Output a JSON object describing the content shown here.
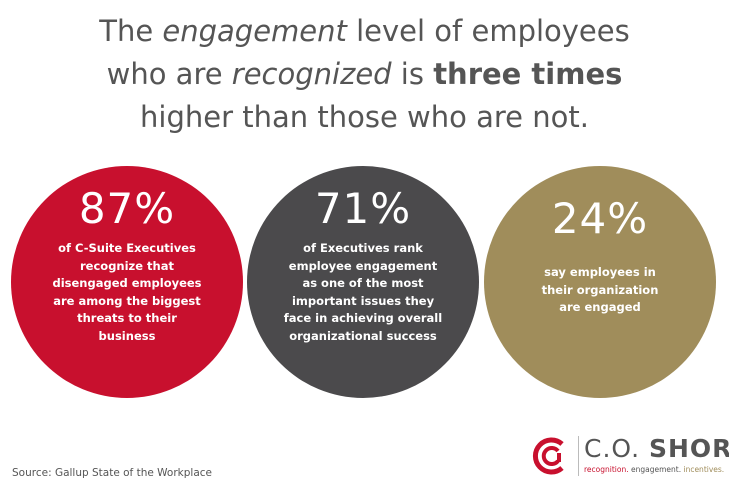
{
  "headline": {
    "line1_pre": "The ",
    "line1_em": "engagement",
    "line1_post": " level of employees",
    "line2_pre": "who are ",
    "line2_em": "recognized",
    "line2_mid": " is ",
    "line2_strong": "three times",
    "line3": "higher than those who are not."
  },
  "stats": [
    {
      "percent": "87%",
      "lines": [
        "of C-Suite Executives",
        "recognize that",
        "disengaged employees",
        "are among the biggest",
        "threats to their",
        "business"
      ],
      "color": "#c8102e"
    },
    {
      "percent": "71%",
      "lines": [
        "of Executives rank",
        "employee engagement",
        "as one of the most",
        "important issues they",
        "face in achieving overall",
        "organizational success"
      ],
      "color": "#4b4a4c"
    },
    {
      "percent": "24%",
      "lines": [
        "say employees in",
        "their organization",
        "are engaged"
      ],
      "color": "#a08d5b"
    }
  ],
  "source": "Source: Gallup State of the Workplace",
  "logo": {
    "name_prefix": "C.O.",
    "name_bold": "SHORT",
    "tagline_1": "recognition.",
    "tagline_2": "engagement.",
    "tagline_3": "incentives."
  }
}
